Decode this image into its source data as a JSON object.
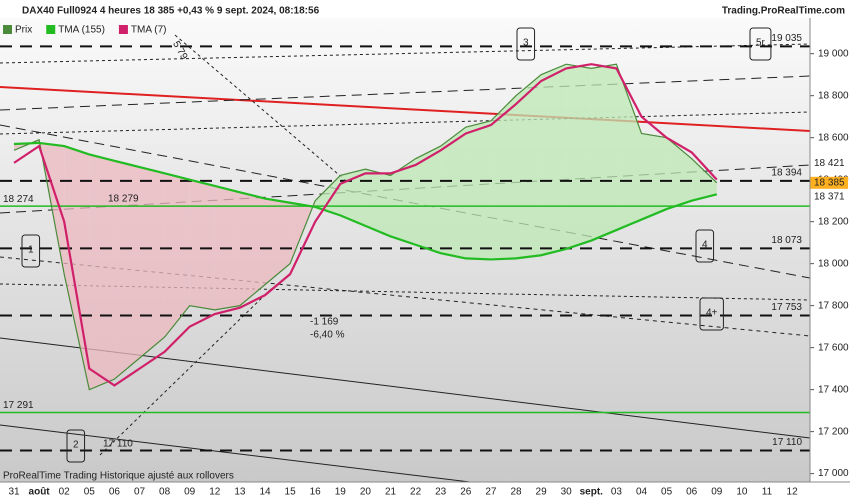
{
  "chart_data": {
    "type": "line",
    "title": "DAX40 Full0924 4 heures 18 385 +0,43 % 9 sept. 2024, 08:18:56",
    "source": "Trading.ProRealTime.com",
    "footer": "ProRealTime Trading  Historique ajusté aux rollovers",
    "categories": [
      "31",
      "août",
      "02",
      "05",
      "06",
      "07",
      "08",
      "09",
      "12",
      "13",
      "14",
      "15",
      "16",
      "19",
      "20",
      "21",
      "22",
      "23",
      "26",
      "27",
      "28",
      "29",
      "30",
      "sept.",
      "03",
      "04",
      "05",
      "06",
      "09",
      "10",
      "11",
      "12"
    ],
    "series": [
      {
        "name": "Prix",
        "color": "#4a8a3a",
        "values": [
          18540,
          18590,
          17950,
          17400,
          17450,
          17550,
          17650,
          17800,
          17780,
          17800,
          17900,
          18000,
          18300,
          18420,
          18450,
          18420,
          18500,
          18560,
          18650,
          18680,
          18800,
          18900,
          18950,
          18930,
          18950,
          18620,
          18600,
          18500,
          18385,
          null,
          null,
          null
        ]
      },
      {
        "name": "TMA (155)",
        "color": "#22bb22",
        "values": [
          18570,
          18575,
          18560,
          18520,
          18490,
          18460,
          18430,
          18400,
          18370,
          18340,
          18310,
          18290,
          18270,
          18230,
          18180,
          18130,
          18090,
          18050,
          18025,
          18020,
          18025,
          18040,
          18070,
          18110,
          18160,
          18210,
          18260,
          18300,
          18330,
          null,
          null,
          null
        ]
      },
      {
        "name": "TMA (7)",
        "color": "#d0206a",
        "values": [
          18480,
          18560,
          18200,
          17500,
          17420,
          17500,
          17580,
          17700,
          17760,
          17790,
          17850,
          17950,
          18200,
          18380,
          18430,
          18430,
          18470,
          18540,
          18620,
          18660,
          18760,
          18870,
          18930,
          18950,
          18930,
          18700,
          18600,
          18530,
          18400,
          null,
          null,
          null
        ]
      }
    ],
    "ylim": [
      16960,
      19170
    ],
    "yticks": [
      {
        "value": 17000,
        "label": "17 000"
      },
      {
        "value": 17200,
        "label": "17 200"
      },
      {
        "value": 17400,
        "label": "17 400"
      },
      {
        "value": 17600,
        "label": "17 600"
      },
      {
        "value": 17800,
        "label": "17 800"
      },
      {
        "value": 18000,
        "label": "18 000"
      },
      {
        "value": 18200,
        "label": "18 200"
      },
      {
        "value": 18400,
        "label": "18 400"
      },
      {
        "value": 18600,
        "label": "18 600"
      },
      {
        "value": 18800,
        "label": "18 800"
      },
      {
        "value": 19000,
        "label": "19 000"
      }
    ],
    "levels": [
      {
        "value": 19035,
        "label": "19 035"
      },
      {
        "value": 18394,
        "label": "18 394"
      },
      {
        "value": 18073,
        "label": "18 073"
      },
      {
        "value": 17753,
        "label": "17 753"
      },
      {
        "value": 17110,
        "label": "17 110"
      }
    ],
    "support_lines": [
      {
        "value": 18274,
        "label": "18 274"
      },
      {
        "value": 17291,
        "label": "17 291"
      }
    ],
    "last_values": [
      {
        "value": 18421,
        "label": "18 421"
      },
      {
        "value": 18385,
        "label": "18 385"
      },
      {
        "value": 18371,
        "label": "18 371"
      }
    ],
    "annotations": [
      "1",
      "2",
      "3",
      "4",
      "4+",
      "5r",
      "-1 169",
      "-6,40 %",
      "18 279",
      "5 79",
      "17 110"
    ]
  }
}
